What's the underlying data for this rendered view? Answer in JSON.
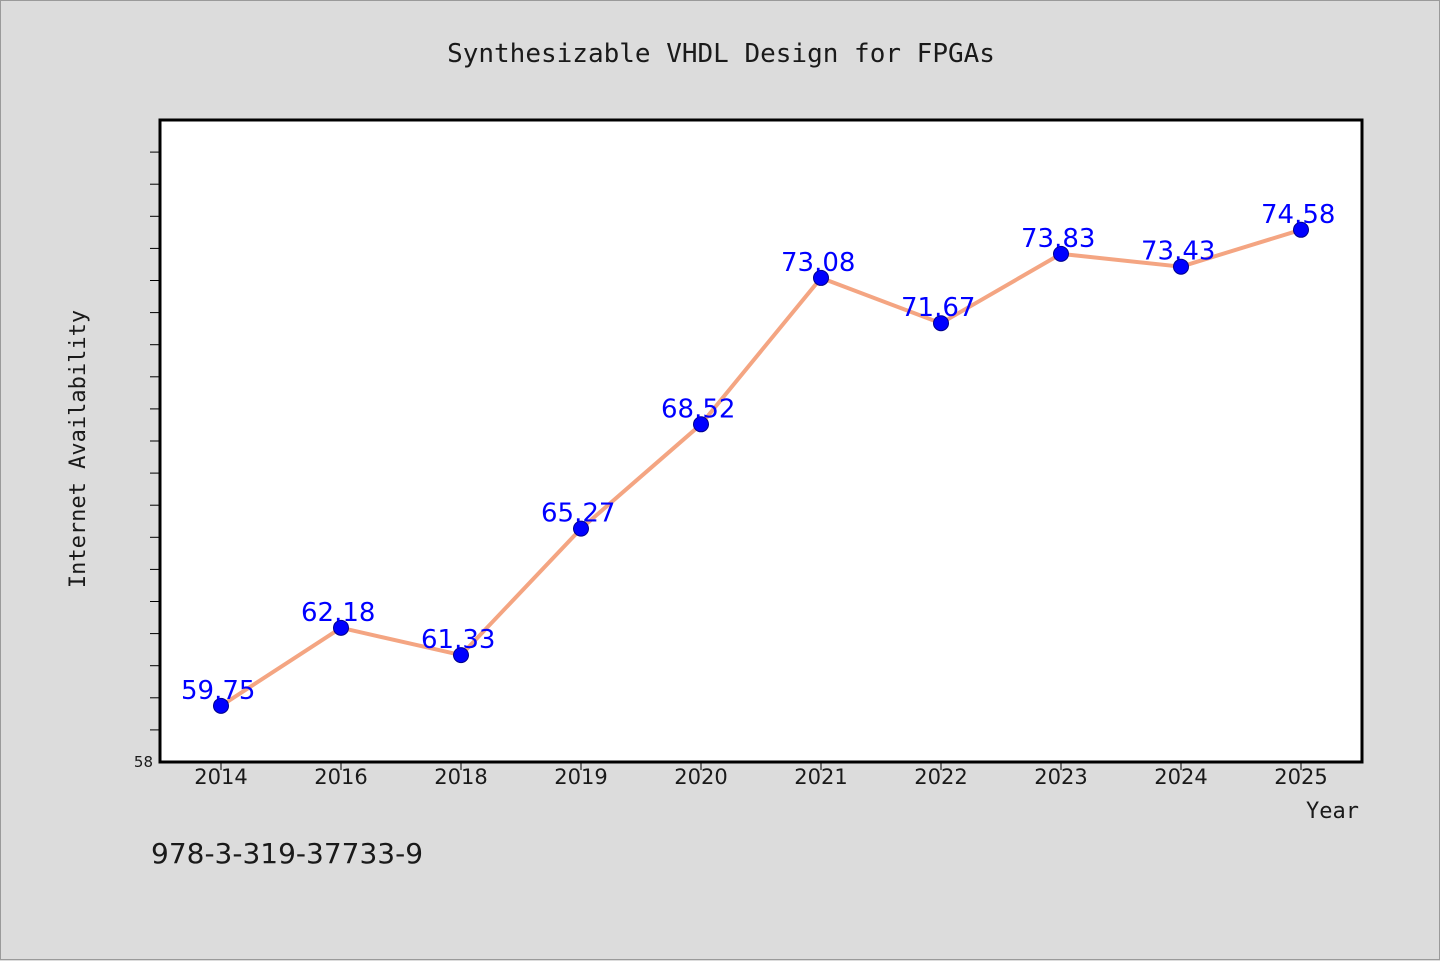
{
  "chart_data": {
    "type": "line",
    "title": "Synthesizable VHDL Design for FPGAs",
    "xlabel": "Year",
    "ylabel": "Internet Availability",
    "categories": [
      "2014",
      "2016",
      "2018",
      "2019",
      "2020",
      "2021",
      "2022",
      "2023",
      "2024",
      "2025"
    ],
    "series": [
      {
        "values": [
          59.75,
          62.18,
          61.33,
          65.27,
          68.52,
          73.08,
          71.67,
          73.83,
          73.43,
          74.58
        ],
        "labels": [
          "59.75",
          "62.18",
          "61.33",
          "65.27",
          "68.52",
          "73.08",
          "71.67",
          "73.83",
          "73.43",
          "74.58"
        ],
        "line_color": "#f4a582",
        "marker_color": "#0000ff"
      }
    ],
    "ylim": [
      58,
      78
    ],
    "y_tick_labels": [
      "58"
    ],
    "grid": false,
    "legend": "none"
  },
  "footer": {
    "isbn": "978-3-319-37733-9"
  },
  "colors": {
    "background": "#dcdcdc",
    "plot_background": "#ffffff",
    "label_color": "#0000ff"
  }
}
